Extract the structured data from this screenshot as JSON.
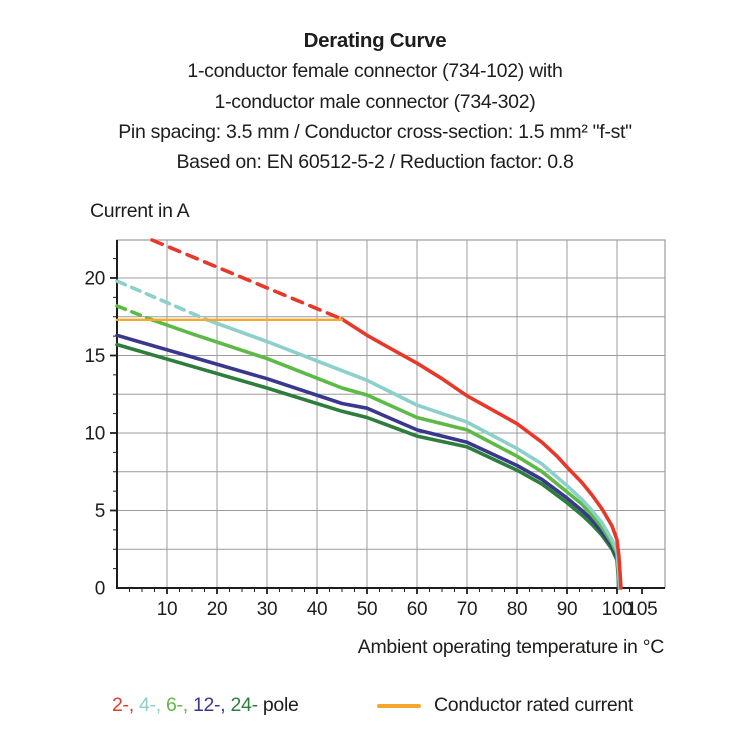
{
  "header": {
    "title": "Derating Curve",
    "lines": [
      "1-conductor female connector (734-102) with",
      "1-conductor male connector (734-302)",
      "Pin spacing: 3.5 mm / Conductor cross-section: 1.5 mm² \"f-st\"",
      "Based on: EN 60512-5-2 / Reduction factor: 0.8"
    ]
  },
  "chart_data": {
    "type": "line",
    "title": "Derating Curve",
    "ylabel": "Current in A",
    "xlabel": "Ambient operating temperature in °C",
    "xlim": [
      0,
      109.6
    ],
    "ylim": [
      0,
      22.45
    ],
    "x_ticks": [
      10,
      20,
      30,
      40,
      50,
      60,
      70,
      80,
      90,
      100,
      105
    ],
    "y_ticks": [
      0,
      5,
      10,
      15,
      20
    ],
    "grid": {
      "x_step": 10,
      "y_step": 2.5,
      "color": "#9c9c9c"
    },
    "axis_color": "#1d1d1b",
    "x_minor_step": 2.5,
    "y_minor_step": 1.25,
    "legend_position": "bottom",
    "series": [
      {
        "name": "24-pole",
        "color": "#2d7e3c",
        "width": 3.6,
        "segments": [
          {
            "dash": false,
            "points": [
              [
                0,
                15.7
              ],
              [
                15,
                14.3
              ],
              [
                30,
                12.9
              ],
              [
                45,
                11.4
              ],
              [
                50,
                11.0
              ],
              [
                60,
                9.8
              ],
              [
                70,
                9.1
              ],
              [
                80,
                7.6
              ],
              [
                85,
                6.7
              ],
              [
                90,
                5.5
              ],
              [
                93,
                4.7
              ],
              [
                95,
                4.1
              ],
              [
                97,
                3.4
              ],
              [
                99,
                2.5
              ],
              [
                100,
                1.8
              ],
              [
                100.4,
                0
              ]
            ]
          }
        ]
      },
      {
        "name": "12-pole",
        "color": "#39388e",
        "width": 3.6,
        "segments": [
          {
            "dash": false,
            "points": [
              [
                0,
                16.3
              ],
              [
                15,
                14.9
              ],
              [
                30,
                13.5
              ],
              [
                45,
                11.9
              ],
              [
                50,
                11.6
              ],
              [
                60,
                10.2
              ],
              [
                70,
                9.4
              ],
              [
                80,
                7.9
              ],
              [
                85,
                7.0
              ],
              [
                90,
                5.8
              ],
              [
                93,
                5.0
              ],
              [
                95,
                4.4
              ],
              [
                97,
                3.6
              ],
              [
                99,
                2.7
              ],
              [
                100,
                2.0
              ],
              [
                100.5,
                0
              ]
            ]
          }
        ]
      },
      {
        "name": "6-pole",
        "color": "#5eba46",
        "width": 3.6,
        "segments": [
          {
            "dash": "9 7",
            "points": [
              [
                0,
                18.2
              ],
              [
                7,
                17.3
              ]
            ]
          },
          {
            "dash": false,
            "points": [
              [
                7,
                17.3
              ],
              [
                15,
                16.4
              ],
              [
                30,
                14.8
              ],
              [
                45,
                12.9
              ],
              [
                50,
                12.45
              ],
              [
                60,
                11.0
              ],
              [
                70,
                10.2
              ],
              [
                80,
                8.5
              ],
              [
                85,
                7.5
              ],
              [
                90,
                6.2
              ],
              [
                93,
                5.4
              ],
              [
                95,
                4.7
              ],
              [
                97,
                3.9
              ],
              [
                99,
                2.9
              ],
              [
                100,
                2.2
              ],
              [
                100.5,
                0
              ]
            ]
          }
        ]
      },
      {
        "name": "4-pole",
        "color": "#8ccfcb",
        "width": 3.6,
        "segments": [
          {
            "dash": "9 7",
            "points": [
              [
                0,
                19.8
              ],
              [
                18,
                17.3
              ]
            ]
          },
          {
            "dash": false,
            "points": [
              [
                18,
                17.3
              ],
              [
                30,
                15.9
              ],
              [
                40,
                14.65
              ],
              [
                50,
                13.4
              ],
              [
                60,
                11.8
              ],
              [
                70,
                10.7
              ],
              [
                80,
                9.0
              ],
              [
                85,
                8.0
              ],
              [
                90,
                6.6
              ],
              [
                93,
                5.7
              ],
              [
                95,
                5.0
              ],
              [
                97,
                4.2
              ],
              [
                99,
                3.1
              ],
              [
                100,
                2.4
              ],
              [
                100.6,
                0
              ]
            ]
          }
        ]
      },
      {
        "name": "2-pole",
        "color": "#e8382a",
        "width": 3.6,
        "segments": [
          {
            "dash": "11 8",
            "points": [
              [
                7,
                22.45
              ],
              [
                45,
                17.35
              ]
            ]
          },
          {
            "dash": false,
            "points": [
              [
                45,
                17.35
              ],
              [
                50,
                16.3
              ],
              [
                55,
                15.4
              ],
              [
                60,
                14.5
              ],
              [
                65,
                13.5
              ],
              [
                70,
                12.4
              ],
              [
                75,
                11.5
              ],
              [
                80,
                10.6
              ],
              [
                85,
                9.4
              ],
              [
                88,
                8.5
              ],
              [
                90,
                7.8
              ],
              [
                93,
                6.8
              ],
              [
                95,
                6.0
              ],
              [
                97,
                5.1
              ],
              [
                99,
                4.0
              ],
              [
                100,
                3.1
              ],
              [
                100.4,
                2.0
              ],
              [
                100.8,
                0
              ]
            ]
          }
        ]
      },
      {
        "name": "conductor-rated-current",
        "color": "#f9a72b",
        "width": 2.4,
        "segments": [
          {
            "dash": false,
            "points": [
              [
                0,
                17.3
              ],
              [
                45,
                17.3
              ]
            ]
          }
        ]
      }
    ]
  },
  "legend": {
    "parts": [
      {
        "text": "2-, ",
        "color": "#e8382a"
      },
      {
        "text": "4-, ",
        "color": "#8ccfcb"
      },
      {
        "text": "6-, ",
        "color": "#5eba46"
      },
      {
        "text": "12-, ",
        "color": "#39388e"
      },
      {
        "text": "24- ",
        "color": "#2d7e3c"
      },
      {
        "text": "pole",
        "color": "#1d1d1b"
      }
    ],
    "rated_label": "Conductor rated current",
    "rated_color": "#f9a72b"
  }
}
